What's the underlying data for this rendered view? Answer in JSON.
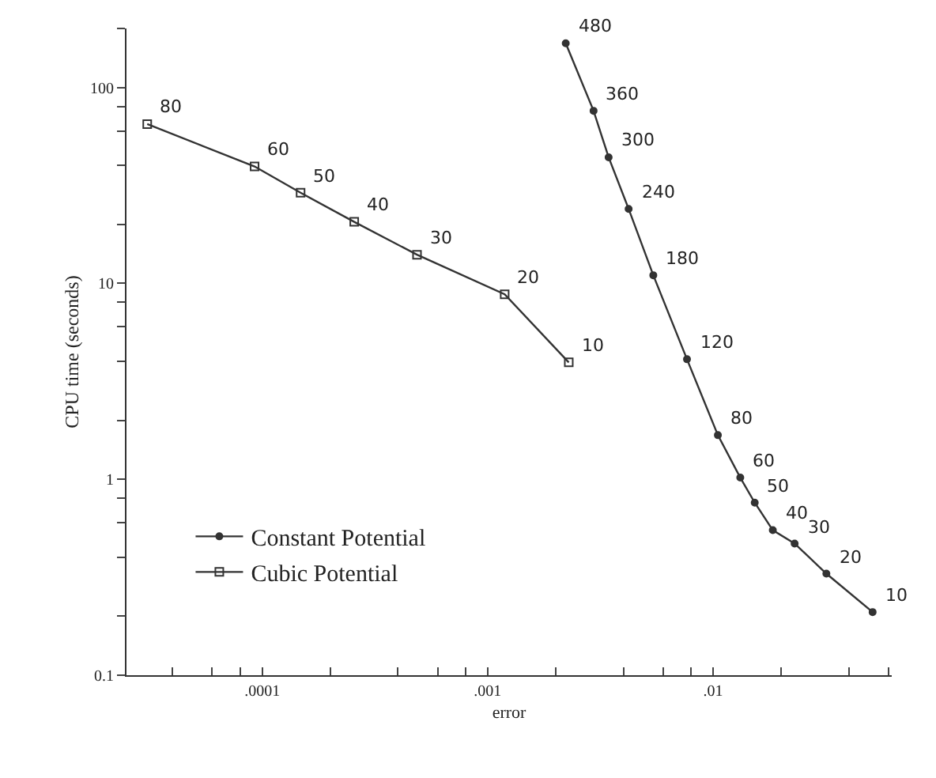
{
  "chart_data": {
    "type": "line",
    "xlabel": "error",
    "ylabel": "CPU time (seconds)",
    "log": "xy",
    "legend": "bottom left",
    "xlim": [
      2.5e-05,
      0.062
    ],
    "ylim": [
      0.1,
      200
    ],
    "xticks": [
      {
        "value": 4e-05,
        "label": null
      },
      {
        "value": 6e-05,
        "label": null
      },
      {
        "value": 8e-05,
        "label": null
      },
      {
        "value": 0.0001,
        "label": ".0001"
      },
      {
        "value": 0.0002,
        "label": null
      },
      {
        "value": 0.0004,
        "label": null
      },
      {
        "value": 0.0006,
        "label": null
      },
      {
        "value": 0.0008,
        "label": null
      },
      {
        "value": 0.001,
        "label": ".001"
      },
      {
        "value": 0.002,
        "label": null
      },
      {
        "value": 0.004,
        "label": null
      },
      {
        "value": 0.006,
        "label": null
      },
      {
        "value": 0.008,
        "label": null
      },
      {
        "value": 0.01,
        "label": ".01"
      },
      {
        "value": 0.02,
        "label": null
      },
      {
        "value": 0.04,
        "label": null
      },
      {
        "value": 0.06,
        "label": null
      }
    ],
    "yticks": [
      0.1,
      {
        "value": 0.2,
        "label": null
      },
      {
        "value": 0.4,
        "label": null
      },
      {
        "value": 0.6,
        "label": null
      },
      {
        "value": 0.8,
        "label": null
      },
      1,
      {
        "value": 2,
        "label": null
      },
      {
        "value": 4,
        "label": null
      },
      {
        "value": 6,
        "label": null
      },
      {
        "value": 8,
        "label": null
      },
      10,
      {
        "value": 20,
        "label": null
      },
      {
        "value": 40,
        "label": null
      },
      {
        "value": 60,
        "label": null
      },
      {
        "value": 80,
        "label": null
      },
      100,
      {
        "value": 200,
        "label": null
      }
    ],
    "series": [
      {
        "name": "Constant Potential",
        "color": "#333333",
        "marker": "circle",
        "line_style": "solid",
        "x": [
          0.00222,
          0.00295,
          0.00344,
          0.00422,
          0.00543,
          0.00766,
          0.0105,
          0.0132,
          0.0153,
          0.0184,
          0.023,
          0.0318,
          0.051
        ],
        "values": [
          168,
          76,
          44,
          24,
          11,
          4.1,
          1.68,
          1.02,
          0.76,
          0.55,
          0.47,
          0.33,
          0.21
        ]
      },
      {
        "name": "Cubic Potential",
        "color": "#333333",
        "marker": "square",
        "line_style": "solid",
        "x": [
          3.09e-05,
          9.25e-05,
          0.000148,
          0.000256,
          0.000486,
          0.00119,
          0.00229
        ],
        "values": [
          65,
          39.5,
          29,
          20.6,
          14,
          8.8,
          3.95
        ]
      }
    ],
    "annotations": [
      {
        "text": "480",
        "x": 0.00222,
        "y": 168
      },
      {
        "text": "360",
        "x": 0.00295,
        "y": 76
      },
      {
        "text": "300",
        "x": 0.00344,
        "y": 44
      },
      {
        "text": "240",
        "x": 0.00422,
        "y": 24
      },
      {
        "text": "180",
        "x": 0.00543,
        "y": 11
      },
      {
        "text": "120",
        "x": 0.00766,
        "y": 4.1
      },
      {
        "text": "80",
        "x": 0.0105,
        "y": 1.68
      },
      {
        "text": "60",
        "x": 0.0132,
        "y": 1.02
      },
      {
        "text": "50",
        "x": 0.0153,
        "y": 0.76
      },
      {
        "text": "40",
        "x": 0.0184,
        "y": 0.55
      },
      {
        "text": "30",
        "x": 0.023,
        "y": 0.47
      },
      {
        "text": "20",
        "x": 0.0318,
        "y": 0.33
      },
      {
        "text": "10",
        "x": 0.051,
        "y": 0.21
      },
      {
        "text": "80",
        "x": 3.09e-05,
        "y": 65
      },
      {
        "text": "60",
        "x": 9.25e-05,
        "y": 39.5
      },
      {
        "text": "50",
        "x": 0.000148,
        "y": 29
      },
      {
        "text": "40",
        "x": 0.000256,
        "y": 20.6
      },
      {
        "text": "30",
        "x": 0.000486,
        "y": 14
      },
      {
        "text": "20",
        "x": 0.00119,
        "y": 8.8
      },
      {
        "text": "10",
        "x": 0.00229,
        "y": 3.95
      }
    ]
  }
}
